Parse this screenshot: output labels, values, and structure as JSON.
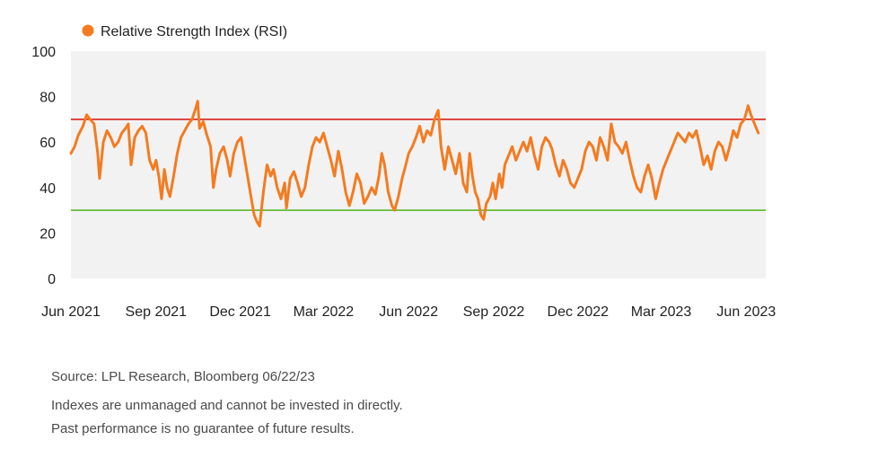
{
  "chart_data": {
    "type": "line",
    "series": [
      {
        "name": "Relative Strength Index (RSI)",
        "color": "#f47b20",
        "points": [
          [
            "2021-06-01",
            55
          ],
          [
            "2021-06-05",
            58
          ],
          [
            "2021-06-09",
            63
          ],
          [
            "2021-06-14",
            67
          ],
          [
            "2021-06-18",
            72
          ],
          [
            "2021-06-22",
            70
          ],
          [
            "2021-06-26",
            68
          ],
          [
            "2021-06-30",
            55
          ],
          [
            "2021-07-02",
            44
          ],
          [
            "2021-07-06",
            60
          ],
          [
            "2021-07-10",
            65
          ],
          [
            "2021-07-14",
            62
          ],
          [
            "2021-07-18",
            58
          ],
          [
            "2021-07-22",
            60
          ],
          [
            "2021-07-26",
            64
          ],
          [
            "2021-07-30",
            66
          ],
          [
            "2021-08-02",
            68
          ],
          [
            "2021-08-05",
            50
          ],
          [
            "2021-08-09",
            62
          ],
          [
            "2021-08-13",
            65
          ],
          [
            "2021-08-17",
            67
          ],
          [
            "2021-08-21",
            64
          ],
          [
            "2021-08-25",
            52
          ],
          [
            "2021-08-29",
            48
          ],
          [
            "2021-09-01",
            52
          ],
          [
            "2021-09-04",
            45
          ],
          [
            "2021-09-07",
            35
          ],
          [
            "2021-09-10",
            48
          ],
          [
            "2021-09-13",
            40
          ],
          [
            "2021-09-16",
            36
          ],
          [
            "2021-09-20",
            45
          ],
          [
            "2021-09-24",
            55
          ],
          [
            "2021-09-28",
            62
          ],
          [
            "2021-10-02",
            65
          ],
          [
            "2021-10-06",
            68
          ],
          [
            "2021-10-10",
            70
          ],
          [
            "2021-10-14",
            75
          ],
          [
            "2021-10-16",
            78
          ],
          [
            "2021-10-18",
            66
          ],
          [
            "2021-10-22",
            69
          ],
          [
            "2021-10-26",
            63
          ],
          [
            "2021-10-30",
            58
          ],
          [
            "2021-11-02",
            40
          ],
          [
            "2021-11-05",
            48
          ],
          [
            "2021-11-09",
            55
          ],
          [
            "2021-11-13",
            58
          ],
          [
            "2021-11-17",
            52
          ],
          [
            "2021-11-20",
            45
          ],
          [
            "2021-11-24",
            55
          ],
          [
            "2021-11-28",
            60
          ],
          [
            "2021-12-02",
            62
          ],
          [
            "2021-12-06",
            52
          ],
          [
            "2021-12-09",
            45
          ],
          [
            "2021-12-13",
            35
          ],
          [
            "2021-12-16",
            28
          ],
          [
            "2021-12-19",
            25
          ],
          [
            "2021-12-22",
            23
          ],
          [
            "2021-12-26",
            38
          ],
          [
            "2021-12-30",
            50
          ],
          [
            "2022-01-03",
            45
          ],
          [
            "2022-01-06",
            48
          ],
          [
            "2022-01-10",
            40
          ],
          [
            "2022-01-14",
            35
          ],
          [
            "2022-01-18",
            42
          ],
          [
            "2022-01-20",
            31
          ],
          [
            "2022-01-24",
            44
          ],
          [
            "2022-01-28",
            47
          ],
          [
            "2022-02-01",
            42
          ],
          [
            "2022-02-05",
            36
          ],
          [
            "2022-02-09",
            40
          ],
          [
            "2022-02-13",
            50
          ],
          [
            "2022-02-17",
            58
          ],
          [
            "2022-02-21",
            62
          ],
          [
            "2022-02-25",
            60
          ],
          [
            "2022-03-01",
            64
          ],
          [
            "2022-03-05",
            58
          ],
          [
            "2022-03-09",
            52
          ],
          [
            "2022-03-13",
            45
          ],
          [
            "2022-03-17",
            56
          ],
          [
            "2022-03-21",
            48
          ],
          [
            "2022-03-25",
            38
          ],
          [
            "2022-03-29",
            32
          ],
          [
            "2022-04-02",
            38
          ],
          [
            "2022-04-06",
            46
          ],
          [
            "2022-04-10",
            42
          ],
          [
            "2022-04-14",
            33
          ],
          [
            "2022-04-18",
            36
          ],
          [
            "2022-04-22",
            40
          ],
          [
            "2022-04-26",
            37
          ],
          [
            "2022-04-30",
            45
          ],
          [
            "2022-05-03",
            55
          ],
          [
            "2022-05-06",
            50
          ],
          [
            "2022-05-10",
            38
          ],
          [
            "2022-05-14",
            32
          ],
          [
            "2022-05-17",
            30
          ],
          [
            "2022-05-21",
            36
          ],
          [
            "2022-05-25",
            44
          ],
          [
            "2022-05-29",
            50
          ],
          [
            "2022-06-01",
            55
          ],
          [
            "2022-06-05",
            58
          ],
          [
            "2022-06-09",
            62
          ],
          [
            "2022-06-13",
            67
          ],
          [
            "2022-06-17",
            60
          ],
          [
            "2022-06-21",
            65
          ],
          [
            "2022-06-25",
            63
          ],
          [
            "2022-06-29",
            70
          ],
          [
            "2022-07-03",
            74
          ],
          [
            "2022-07-06",
            58
          ],
          [
            "2022-07-10",
            48
          ],
          [
            "2022-07-14",
            58
          ],
          [
            "2022-07-18",
            52
          ],
          [
            "2022-07-22",
            46
          ],
          [
            "2022-07-26",
            55
          ],
          [
            "2022-07-30",
            42
          ],
          [
            "2022-08-03",
            38
          ],
          [
            "2022-08-06",
            55
          ],
          [
            "2022-08-09",
            45
          ],
          [
            "2022-08-12",
            38
          ],
          [
            "2022-08-15",
            35
          ],
          [
            "2022-08-18",
            28
          ],
          [
            "2022-08-21",
            26
          ],
          [
            "2022-08-24",
            33
          ],
          [
            "2022-08-28",
            36
          ],
          [
            "2022-08-31",
            42
          ],
          [
            "2022-09-03",
            35
          ],
          [
            "2022-09-07",
            46
          ],
          [
            "2022-09-10",
            40
          ],
          [
            "2022-09-13",
            50
          ],
          [
            "2022-09-17",
            54
          ],
          [
            "2022-09-21",
            58
          ],
          [
            "2022-09-25",
            52
          ],
          [
            "2022-09-29",
            56
          ],
          [
            "2022-10-03",
            60
          ],
          [
            "2022-10-07",
            56
          ],
          [
            "2022-10-11",
            62
          ],
          [
            "2022-10-15",
            54
          ],
          [
            "2022-10-19",
            48
          ],
          [
            "2022-10-23",
            58
          ],
          [
            "2022-10-27",
            62
          ],
          [
            "2022-10-31",
            60
          ],
          [
            "2022-11-03",
            57
          ],
          [
            "2022-11-07",
            50
          ],
          [
            "2022-11-11",
            45
          ],
          [
            "2022-11-15",
            52
          ],
          [
            "2022-11-19",
            48
          ],
          [
            "2022-11-23",
            42
          ],
          [
            "2022-11-27",
            40
          ],
          [
            "2022-12-01",
            44
          ],
          [
            "2022-12-05",
            48
          ],
          [
            "2022-12-09",
            56
          ],
          [
            "2022-12-13",
            60
          ],
          [
            "2022-12-17",
            58
          ],
          [
            "2022-12-21",
            52
          ],
          [
            "2022-12-25",
            62
          ],
          [
            "2022-12-29",
            58
          ],
          [
            "2023-01-02",
            52
          ],
          [
            "2023-01-06",
            68
          ],
          [
            "2023-01-10",
            60
          ],
          [
            "2023-01-14",
            58
          ],
          [
            "2023-01-18",
            55
          ],
          [
            "2023-01-22",
            60
          ],
          [
            "2023-01-26",
            52
          ],
          [
            "2023-01-30",
            45
          ],
          [
            "2023-02-03",
            40
          ],
          [
            "2023-02-07",
            38
          ],
          [
            "2023-02-11",
            45
          ],
          [
            "2023-02-15",
            50
          ],
          [
            "2023-02-19",
            44
          ],
          [
            "2023-02-23",
            35
          ],
          [
            "2023-02-27",
            42
          ],
          [
            "2023-03-03",
            48
          ],
          [
            "2023-03-07",
            52
          ],
          [
            "2023-03-11",
            56
          ],
          [
            "2023-03-15",
            60
          ],
          [
            "2023-03-19",
            64
          ],
          [
            "2023-03-23",
            62
          ],
          [
            "2023-03-27",
            60
          ],
          [
            "2023-03-31",
            64
          ],
          [
            "2023-04-04",
            62
          ],
          [
            "2023-04-08",
            65
          ],
          [
            "2023-04-12",
            58
          ],
          [
            "2023-04-16",
            50
          ],
          [
            "2023-04-20",
            54
          ],
          [
            "2023-04-24",
            48
          ],
          [
            "2023-04-28",
            56
          ],
          [
            "2023-05-02",
            60
          ],
          [
            "2023-05-06",
            58
          ],
          [
            "2023-05-10",
            52
          ],
          [
            "2023-05-14",
            58
          ],
          [
            "2023-05-18",
            65
          ],
          [
            "2023-05-22",
            62
          ],
          [
            "2023-05-26",
            68
          ],
          [
            "2023-05-30",
            70
          ],
          [
            "2023-06-03",
            76
          ],
          [
            "2023-06-06",
            72
          ],
          [
            "2023-06-10",
            68
          ],
          [
            "2023-06-14",
            64
          ]
        ]
      }
    ],
    "reference_lines": [
      {
        "value": 70,
        "color": "#d9302a"
      },
      {
        "value": 30,
        "color": "#66bb3a"
      }
    ],
    "x_ticks": [
      {
        "date": "2021-06-01",
        "label": "Jun 2021"
      },
      {
        "date": "2021-09-01",
        "label": "Sep 2021"
      },
      {
        "date": "2021-12-01",
        "label": "Dec 2021"
      },
      {
        "date": "2022-03-01",
        "label": "Mar 2022"
      },
      {
        "date": "2022-06-01",
        "label": "Jun 2022"
      },
      {
        "date": "2022-09-01",
        "label": "Sep 2022"
      },
      {
        "date": "2022-12-01",
        "label": "Dec 2022"
      },
      {
        "date": "2023-03-01",
        "label": "Mar 2023"
      },
      {
        "date": "2023-06-01",
        "label": "Jun 2023"
      }
    ],
    "xlim": [
      "2021-06-01",
      "2023-06-22"
    ],
    "ylim": [
      0,
      100
    ],
    "y_ticks": [
      0,
      20,
      40,
      60,
      80,
      100
    ],
    "plot_background": "#f2f2f2",
    "grid": false,
    "legend": {
      "position": "top-left"
    }
  },
  "footnotes": {
    "source": "Source: LPL Research, Bloomberg  06/22/23",
    "line1": "Indexes are unmanaged and cannot be invested in directly.",
    "line2": "Past performance is no guarantee of future results."
  }
}
